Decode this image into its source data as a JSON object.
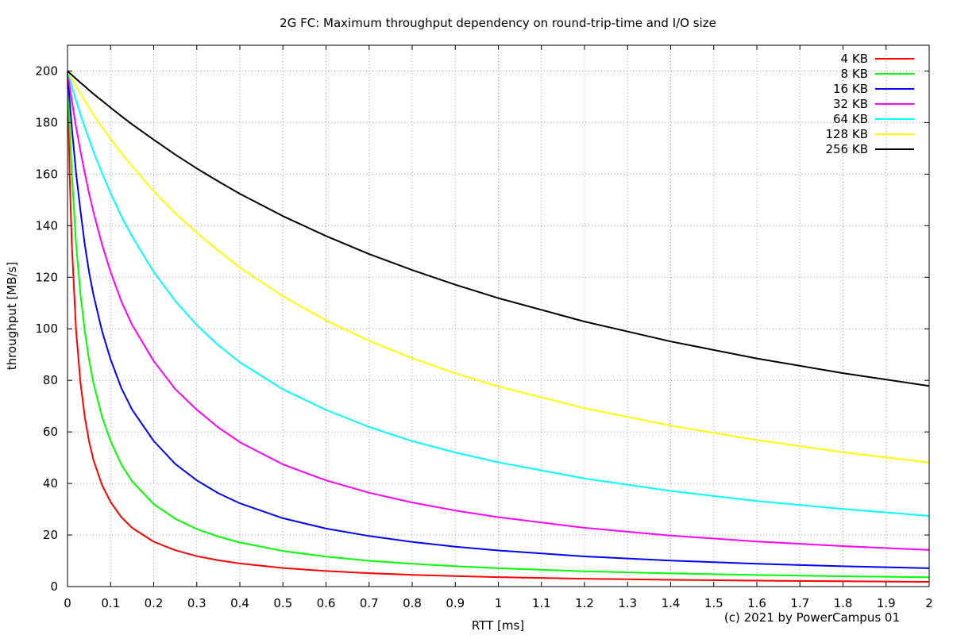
{
  "chart_data": {
    "type": "line",
    "title": "2G FC: Maximum throughput dependency on round-trip-time and I/O size",
    "xlabel": "RTT [ms]",
    "ylabel": "throughput [MB/s]",
    "xlim": [
      0,
      2
    ],
    "ylim": [
      0,
      210
    ],
    "x_ticks": [
      "0",
      "0.1",
      "0.2",
      "0.3",
      "0.4",
      "0.5",
      "0.6",
      "0.7",
      "0.8",
      "0.9",
      "1",
      "1.1",
      "1.2",
      "1.3",
      "1.4",
      "1.5",
      "1.6",
      "1.7",
      "1.8",
      "1.9",
      "2"
    ],
    "y_ticks": [
      "0",
      "20",
      "40",
      "60",
      "80",
      "100",
      "120",
      "140",
      "160",
      "180",
      "200"
    ],
    "grid": true,
    "grid_style": "dotted",
    "legend_position": "top-right",
    "annotation": "(c) 2021 by PowerCampus 01",
    "x": [
      0,
      0.005,
      0.01,
      0.02,
      0.03,
      0.04,
      0.05,
      0.06,
      0.08,
      0.1,
      0.125,
      0.15,
      0.2,
      0.25,
      0.3,
      0.35,
      0.4,
      0.5,
      0.6,
      0.7,
      0.8,
      0.9,
      1.0,
      1.2,
      1.4,
      1.6,
      1.8,
      2.0
    ],
    "series": [
      {
        "name": "4 KB",
        "color": "#ff0000",
        "values": [
          200,
          159.8,
          132.8,
          99.2,
          79.2,
          65.9,
          56.4,
          49.3,
          39.4,
          32.8,
          26.9,
          22.8,
          17.4,
          14.1,
          11.8,
          10.2,
          8.96,
          7.22,
          6.05,
          5.2,
          4.56,
          4.06,
          3.66,
          3.06,
          2.63,
          2.3,
          2.05,
          1.84
        ]
      },
      {
        "name": "8 KB",
        "color": "#00ff00",
        "values": [
          200,
          178.0,
          160.4,
          132.8,
          113.4,
          99.2,
          88.1,
          79.2,
          65.9,
          56.4,
          47.3,
          40.8,
          32.0,
          26.3,
          22.3,
          19.4,
          17.1,
          13.8,
          11.6,
          10.0,
          8.83,
          7.88,
          7.11,
          5.95,
          5.12,
          4.5,
          4.0,
          3.61
        ]
      },
      {
        "name": "16 KB",
        "color": "#0000ff",
        "values": [
          200,
          188.5,
          178.2,
          160.4,
          145.9,
          132.8,
          122.1,
          113.4,
          99.2,
          88.1,
          77.0,
          68.6,
          56.5,
          47.6,
          41.2,
          36.2,
          32.3,
          26.5,
          22.5,
          19.6,
          17.3,
          15.5,
          14.0,
          11.7,
          10.1,
          8.85,
          7.89,
          7.11
        ]
      },
      {
        "name": "32 KB",
        "color": "#ff00ff",
        "values": [
          200,
          194.1,
          188.5,
          178.2,
          168.9,
          160.4,
          152.6,
          145.5,
          132.8,
          122.0,
          110.6,
          101.5,
          87.5,
          76.6,
          68.6,
          61.7,
          56.0,
          47.4,
          41.2,
          36.4,
          32.6,
          29.5,
          26.9,
          22.8,
          19.8,
          17.5,
          15.7,
          14.2
        ]
      },
      {
        "name": "64 KB",
        "color": "#00ffff",
        "values": [
          200,
          197.0,
          194.1,
          188.5,
          183.1,
          178.2,
          173.6,
          168.9,
          160.4,
          152.6,
          143.6,
          135.8,
          122.1,
          110.8,
          101.4,
          93.6,
          87.0,
          76.5,
          68.5,
          61.9,
          56.4,
          52.0,
          48.2,
          41.9,
          37.1,
          33.2,
          30.1,
          27.4
        ]
      },
      {
        "name": "128 KB",
        "color": "#ffff00",
        "values": [
          200,
          198.5,
          197.0,
          194.1,
          191.2,
          188.5,
          185.8,
          183.1,
          178.2,
          173.6,
          168.1,
          163.0,
          153.3,
          144.8,
          137.2,
          130.3,
          123.7,
          112.6,
          103.2,
          95.3,
          88.6,
          82.7,
          77.6,
          69.2,
          62.4,
          56.8,
          52.1,
          48.1
        ]
      },
      {
        "name": "256 KB",
        "color": "#000000",
        "values": [
          200,
          199.2,
          198.5,
          197.0,
          195.5,
          194.1,
          192.6,
          191.2,
          188.5,
          185.8,
          182.5,
          179.3,
          173.4,
          167.6,
          162.2,
          157.2,
          152.4,
          143.7,
          136.0,
          129.0,
          122.8,
          117.1,
          111.9,
          102.8,
          95.1,
          88.5,
          82.8,
          77.8
        ]
      }
    ]
  }
}
